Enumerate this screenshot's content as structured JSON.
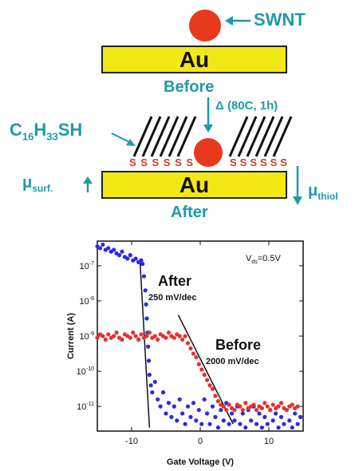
{
  "diagram": {
    "tube_label": "SWNT",
    "electrode_label": "Au",
    "before_label": "Before",
    "after_label": "After",
    "anneal_label": "Δ (80C, 1h)",
    "thiol": {
      "base": "C",
      "sub1": "16",
      "mid": "H",
      "sub2": "33",
      "end": "SH"
    },
    "sulfur_symbol": "S",
    "mu_surf": {
      "base": "μ",
      "sub": "surf."
    },
    "mu_thiol": {
      "base": "μ",
      "sub": "thiol"
    },
    "colors": {
      "electrode": "#f2e816",
      "tube": "#e8391d",
      "label": "#1f9aa6",
      "sulfur": "#d23a2a"
    }
  },
  "chart_data": {
    "type": "scatter",
    "xlabel": "Gate Voltage (V)",
    "ylabel": "Current (A)",
    "xlim": [
      -15,
      15
    ],
    "ylog_range": [
      -11.7,
      -6.3
    ],
    "x_ticks": [
      -10,
      0,
      10
    ],
    "y_ticks": [
      {
        "exp": -7,
        "base": "10",
        "sup": "-7"
      },
      {
        "exp": -8,
        "base": "10",
        "sup": "-8"
      },
      {
        "exp": -9,
        "base": "10",
        "sup": "-9"
      },
      {
        "exp": -10,
        "base": "10",
        "sup": "-10"
      },
      {
        "exp": -11,
        "base": "10",
        "sup": "-11"
      }
    ],
    "vds_label": {
      "base": "V",
      "sub": "ds",
      "rest": "=0.5V"
    },
    "series": [
      {
        "name": "After",
        "slope_label": "250 mV/dec",
        "color": "#2a2ae6",
        "points": [
          [
            -15,
            -6.45
          ],
          [
            -14.6,
            -6.5
          ],
          [
            -14.2,
            -6.4
          ],
          [
            -13.8,
            -6.55
          ],
          [
            -13.4,
            -6.5
          ],
          [
            -13,
            -6.6
          ],
          [
            -12.6,
            -6.55
          ],
          [
            -12.2,
            -6.65
          ],
          [
            -11.8,
            -6.7
          ],
          [
            -11.4,
            -6.6
          ],
          [
            -11,
            -6.75
          ],
          [
            -10.6,
            -6.8
          ],
          [
            -10.2,
            -6.7
          ],
          [
            -9.8,
            -6.85
          ],
          [
            -9.4,
            -6.8
          ],
          [
            -9,
            -6.9
          ],
          [
            -8.6,
            -6.85
          ],
          [
            -8.4,
            -6.95
          ],
          [
            -8.2,
            -7.3
          ],
          [
            -8,
            -7.7
          ],
          [
            -7.9,
            -8.1
          ],
          [
            -7.8,
            -8.5
          ],
          [
            -7.7,
            -8.9
          ],
          [
            -7.6,
            -9.3
          ],
          [
            -7.5,
            -9.7
          ],
          [
            -7.4,
            -10.1
          ],
          [
            -7.2,
            -10.4
          ],
          [
            -7,
            -10.6
          ],
          [
            -6.6,
            -10.3
          ],
          [
            -6.2,
            -10.8
          ],
          [
            -5.8,
            -11.0
          ],
          [
            -5.4,
            -10.6
          ],
          [
            -5,
            -11.2
          ],
          [
            -4.6,
            -10.9
          ],
          [
            -4.2,
            -11.3
          ],
          [
            -3.8,
            -11.0
          ],
          [
            -3.4,
            -11.4
          ],
          [
            -3,
            -10.8
          ],
          [
            -2.6,
            -11.2
          ],
          [
            -2.2,
            -11.5
          ],
          [
            -1.8,
            -11.0
          ],
          [
            -1.4,
            -11.3
          ],
          [
            -1,
            -10.9
          ],
          [
            -0.6,
            -11.4
          ],
          [
            -0.2,
            -11.1
          ],
          [
            0.2,
            -11.5
          ],
          [
            0.6,
            -10.8
          ],
          [
            1,
            -11.2
          ],
          [
            1.4,
            -11.5
          ],
          [
            1.8,
            -11.0
          ],
          [
            2.2,
            -11.3
          ],
          [
            2.6,
            -11.6
          ],
          [
            3,
            -11.1
          ],
          [
            3.4,
            -11.4
          ],
          [
            3.8,
            -10.9
          ],
          [
            4.2,
            -11.5
          ],
          [
            4.6,
            -11.2
          ],
          [
            5,
            -11.4
          ],
          [
            5.4,
            -11.0
          ],
          [
            5.8,
            -11.5
          ],
          [
            6.2,
            -11.2
          ],
          [
            6.6,
            -11.6
          ],
          [
            7,
            -11.1
          ],
          [
            7.4,
            -11.4
          ],
          [
            7.8,
            -11.0
          ],
          [
            8.2,
            -11.5
          ],
          [
            8.6,
            -11.2
          ],
          [
            9,
            -11.6
          ],
          [
            9.4,
            -11.3
          ],
          [
            9.8,
            -11.5
          ],
          [
            10.2,
            -11.1
          ],
          [
            10.6,
            -11.4
          ],
          [
            11,
            -11.2
          ],
          [
            11.4,
            -11.6
          ],
          [
            11.8,
            -11.3
          ],
          [
            12.2,
            -11.5
          ],
          [
            12.6,
            -11.1
          ],
          [
            13,
            -11.4
          ],
          [
            13.4,
            -11.6
          ],
          [
            13.8,
            -11.2
          ],
          [
            14.2,
            -11.5
          ],
          [
            14.6,
            -11.3
          ]
        ],
        "fit": [
          [
            -8.8,
            -6.8
          ],
          [
            -7.4,
            -11.6
          ]
        ]
      },
      {
        "name": "Before",
        "slope_label": "2000 mV/dec",
        "color": "#e2332a",
        "points": [
          [
            -15,
            -9.05
          ],
          [
            -14.6,
            -8.95
          ],
          [
            -14.2,
            -9.0
          ],
          [
            -13.8,
            -9.1
          ],
          [
            -13.4,
            -8.95
          ],
          [
            -13,
            -9.05
          ],
          [
            -12.6,
            -9.0
          ],
          [
            -12.2,
            -8.9
          ],
          [
            -11.8,
            -9.05
          ],
          [
            -11.4,
            -9.1
          ],
          [
            -11,
            -8.95
          ],
          [
            -10.6,
            -9.0
          ],
          [
            -10.2,
            -9.05
          ],
          [
            -9.8,
            -8.9
          ],
          [
            -9.4,
            -9.0
          ],
          [
            -9,
            -9.1
          ],
          [
            -8.6,
            -8.95
          ],
          [
            -8.2,
            -9.05
          ],
          [
            -7.8,
            -9.0
          ],
          [
            -7.4,
            -8.9
          ],
          [
            -7,
            -9.05
          ],
          [
            -6.6,
            -9.0
          ],
          [
            -6.2,
            -9.1
          ],
          [
            -5.8,
            -8.95
          ],
          [
            -5.4,
            -9.0
          ],
          [
            -5,
            -9.05
          ],
          [
            -4.6,
            -8.9
          ],
          [
            -4.2,
            -9.0
          ],
          [
            -3.8,
            -9.05
          ],
          [
            -3.4,
            -8.95
          ],
          [
            -3,
            -9.0
          ],
          [
            -2.6,
            -9.1
          ],
          [
            -2.2,
            -9.0
          ],
          [
            -1.8,
            -9.2
          ],
          [
            -1.4,
            -9.35
          ],
          [
            -1,
            -9.5
          ],
          [
            -0.6,
            -9.6
          ],
          [
            -0.2,
            -9.8
          ],
          [
            0.2,
            -9.95
          ],
          [
            0.6,
            -10.1
          ],
          [
            1,
            -10.25
          ],
          [
            1.4,
            -10.4
          ],
          [
            1.8,
            -10.5
          ],
          [
            2.2,
            -10.7
          ],
          [
            2.6,
            -10.85
          ],
          [
            3,
            -10.95
          ],
          [
            3.4,
            -11.0
          ],
          [
            3.8,
            -11.1
          ],
          [
            4.2,
            -10.95
          ],
          [
            4.6,
            -11.05
          ],
          [
            5,
            -11.1
          ],
          [
            5.4,
            -10.95
          ],
          [
            5.8,
            -11.0
          ],
          [
            6.2,
            -11.1
          ],
          [
            6.6,
            -10.9
          ],
          [
            7,
            -11.05
          ],
          [
            7.4,
            -11.0
          ],
          [
            7.8,
            -10.95
          ],
          [
            8.2,
            -11.1
          ],
          [
            8.6,
            -11.0
          ],
          [
            9,
            -11.05
          ],
          [
            9.4,
            -10.9
          ],
          [
            9.8,
            -11.0
          ],
          [
            10.2,
            -11.1
          ],
          [
            10.6,
            -10.95
          ],
          [
            11,
            -11.05
          ],
          [
            11.4,
            -11.0
          ],
          [
            11.8,
            -10.9
          ],
          [
            12.2,
            -11.05
          ],
          [
            12.6,
            -11.1
          ],
          [
            13,
            -11.0
          ],
          [
            13.4,
            -10.95
          ],
          [
            13.8,
            -11.05
          ],
          [
            14.2,
            -11.0
          ]
        ],
        "fit": [
          [
            -3.2,
            -8.4
          ],
          [
            4.8,
            -11.5
          ]
        ]
      }
    ]
  }
}
